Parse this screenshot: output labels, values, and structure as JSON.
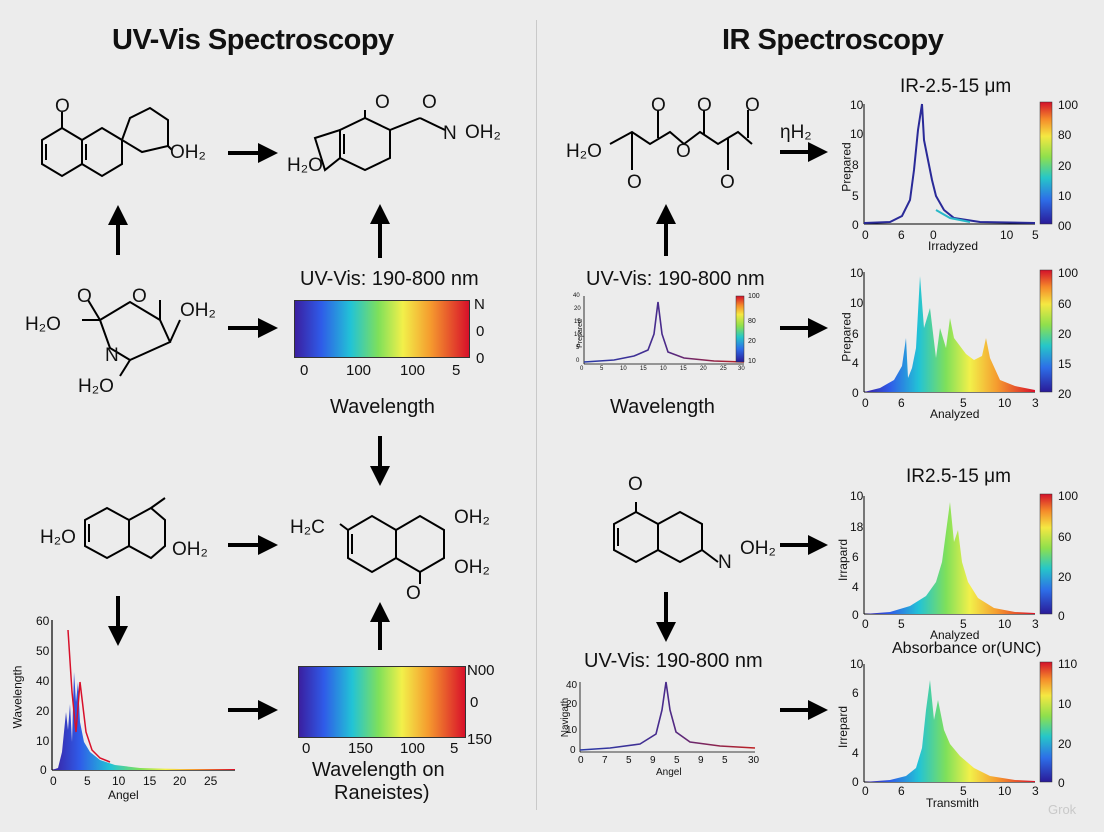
{
  "left": {
    "title": "UV-Vis Spectroscopy",
    "mol_a": {
      "o1": "O",
      "oh": "OH₂"
    },
    "mol_b": {
      "o1": "O",
      "o2": "O",
      "n": "N",
      "oh": "OH₂",
      "h2o": "H₂O"
    },
    "mol_c": {
      "o1": "O",
      "o2": "O",
      "ho": "H₂O",
      "oh": "OH₂",
      "n": "N",
      "h2o": "H₂O"
    },
    "mol_d": {
      "ho": "H₂O",
      "oh": "OH₂"
    },
    "mol_e": {
      "hco": "H₂C",
      "oh1": "OH₂",
      "oh2": "OH₂",
      "o": "O"
    },
    "bar1": {
      "title": "UV-Vis: 190-800 nm",
      "ticks": [
        "0",
        "100",
        "100",
        "5"
      ],
      "right": [
        "N",
        "0",
        "0"
      ],
      "caption": "Wavelength"
    },
    "bar2": {
      "ticks": [
        "0",
        "150",
        "100",
        "5"
      ],
      "right": [
        "N00",
        "0",
        "150"
      ],
      "caption": "Wavelength on",
      "caption2": "Raneistes)"
    },
    "chart": {
      "ylabel": "Wavelength",
      "xlabel": "Angel",
      "yticks": [
        "60",
        "50",
        "40",
        "20",
        "10",
        "0"
      ],
      "xticks": [
        "0",
        "5",
        "10",
        "15",
        "20",
        "25"
      ]
    }
  },
  "right": {
    "title": "IR Spectroscopy",
    "mol_f": {
      "h2o": "H₂O",
      "o": "O",
      "nh": "ηH₂"
    },
    "mol_g": {
      "o": "O",
      "n": "N",
      "oh": "OH₂"
    },
    "mini1": {
      "title": "UV-Vis: 190-800 nm",
      "caption": "Wavelength",
      "ylabel": "Prepared",
      "cb": [
        "100",
        "80",
        "20",
        "10"
      ],
      "yticks": [
        "40",
        "20",
        "15",
        "10",
        "5",
        "0"
      ],
      "xticks": [
        "0",
        "5",
        "10",
        "15",
        "10",
        "15",
        "20",
        "25",
        "30"
      ]
    },
    "mini2": {
      "title": "UV-Vis: 190-800 nm",
      "ylabel": "Navigath",
      "xlabel": "Angel",
      "yticks": [
        "40",
        "20",
        "10",
        "0"
      ],
      "xticks": [
        "0",
        "7",
        "5",
        "9",
        "5",
        "9",
        "5",
        "30"
      ]
    },
    "ir1": {
      "title": "IR-2.5-15 μm",
      "ylabel": "Prepared",
      "xlabel": "Irradyzed",
      "yticks": [
        "10",
        "10",
        "8",
        "5",
        "0"
      ],
      "xticks": [
        "0",
        "6",
        "0",
        "10",
        "5"
      ],
      "cb": [
        "100",
        "80",
        "20",
        "10",
        "00"
      ]
    },
    "ir2": {
      "ylabel": "Prepared",
      "xlabel": "Analyzed",
      "yticks": [
        "10",
        "10",
        "6",
        "4",
        "0"
      ],
      "xticks": [
        "0",
        "6",
        "5",
        "10",
        "3"
      ],
      "cb": [
        "100",
        "60",
        "20",
        "15",
        "20"
      ]
    },
    "ir3": {
      "title": "IR2.5-15 μm",
      "ylabel": "Irrapard",
      "xlabel": "Analyzed",
      "yticks": [
        "10",
        "18",
        "6",
        "4",
        "0"
      ],
      "xticks": [
        "0",
        "5",
        "5",
        "10",
        "3"
      ],
      "cb": [
        "100",
        "60",
        "20",
        "0"
      ]
    },
    "ir4": {
      "title": "Absorbance or(UNC)",
      "ylabel": "Irrepard",
      "xlabel": "Transmith",
      "yticks": [
        "10",
        "6",
        "4",
        "0"
      ],
      "xticks": [
        "0",
        "6",
        "5",
        "10",
        "3"
      ],
      "cb": [
        "110",
        "10",
        "20",
        "0"
      ]
    }
  },
  "watermark": "Grok"
}
